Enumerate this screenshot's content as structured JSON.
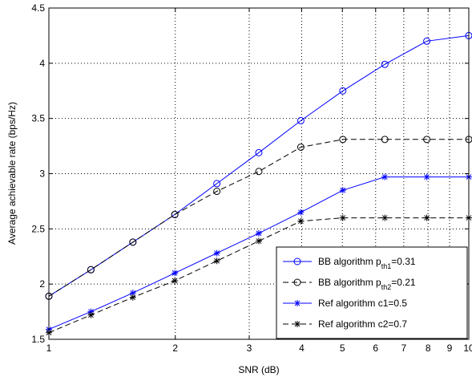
{
  "chart_data": {
    "type": "line",
    "title": "",
    "xlabel": "SNR (dB)",
    "ylabel": "Average achievable rate (bps/Hz)",
    "xlim": [
      1,
      10
    ],
    "ylim": [
      1.5,
      4.5
    ],
    "x_scale": "log",
    "xticks": [
      1,
      2,
      3,
      4,
      5,
      6,
      7,
      8,
      9,
      10
    ],
    "xtick_labels": [
      "1",
      "2",
      "3",
      "4",
      "5",
      "6",
      "7",
      "8",
      "9",
      "10"
    ],
    "yticks": [
      1.5,
      2,
      2.5,
      3,
      3.5,
      4,
      4.5
    ],
    "ytick_labels": [
      "1.5",
      "2",
      "2.5",
      "3",
      "3.5",
      "4",
      "4.5"
    ],
    "grid": true,
    "legend_position": "bottom-right",
    "x": [
      1,
      1.259,
      1.585,
      1.995,
      2.512,
      3.162,
      3.981,
      5.012,
      6.31,
      7.943,
      10
    ],
    "series": [
      {
        "name_main": "BB algorithm p",
        "name_sub": "th1",
        "name_tail": "=0.31",
        "color": "#0000ff",
        "dash": "solid",
        "marker": "circle",
        "values": [
          1.89,
          2.13,
          2.38,
          2.63,
          2.91,
          3.19,
          3.48,
          3.75,
          3.99,
          4.2,
          4.25
        ]
      },
      {
        "name_main": "BB algorithm p",
        "name_sub": "th2",
        "name_tail": "=0.21",
        "color": "#000000",
        "dash": "dashed",
        "marker": "circle",
        "values": [
          1.89,
          2.13,
          2.38,
          2.63,
          2.84,
          3.02,
          3.24,
          3.31,
          3.31,
          3.31,
          3.31
        ]
      },
      {
        "name_main": "Ref algorithm c1=0.5",
        "name_sub": "",
        "name_tail": "",
        "color": "#0000ff",
        "dash": "solid",
        "marker": "star",
        "values": [
          1.59,
          1.75,
          1.92,
          2.1,
          2.28,
          2.46,
          2.65,
          2.85,
          2.97,
          2.97,
          2.97
        ]
      },
      {
        "name_main": "Ref algorithm c2=0.7",
        "name_sub": "",
        "name_tail": "",
        "color": "#000000",
        "dash": "dashed",
        "marker": "star",
        "values": [
          1.56,
          1.72,
          1.88,
          2.03,
          2.21,
          2.39,
          2.57,
          2.6,
          2.6,
          2.6,
          2.6
        ]
      }
    ]
  }
}
